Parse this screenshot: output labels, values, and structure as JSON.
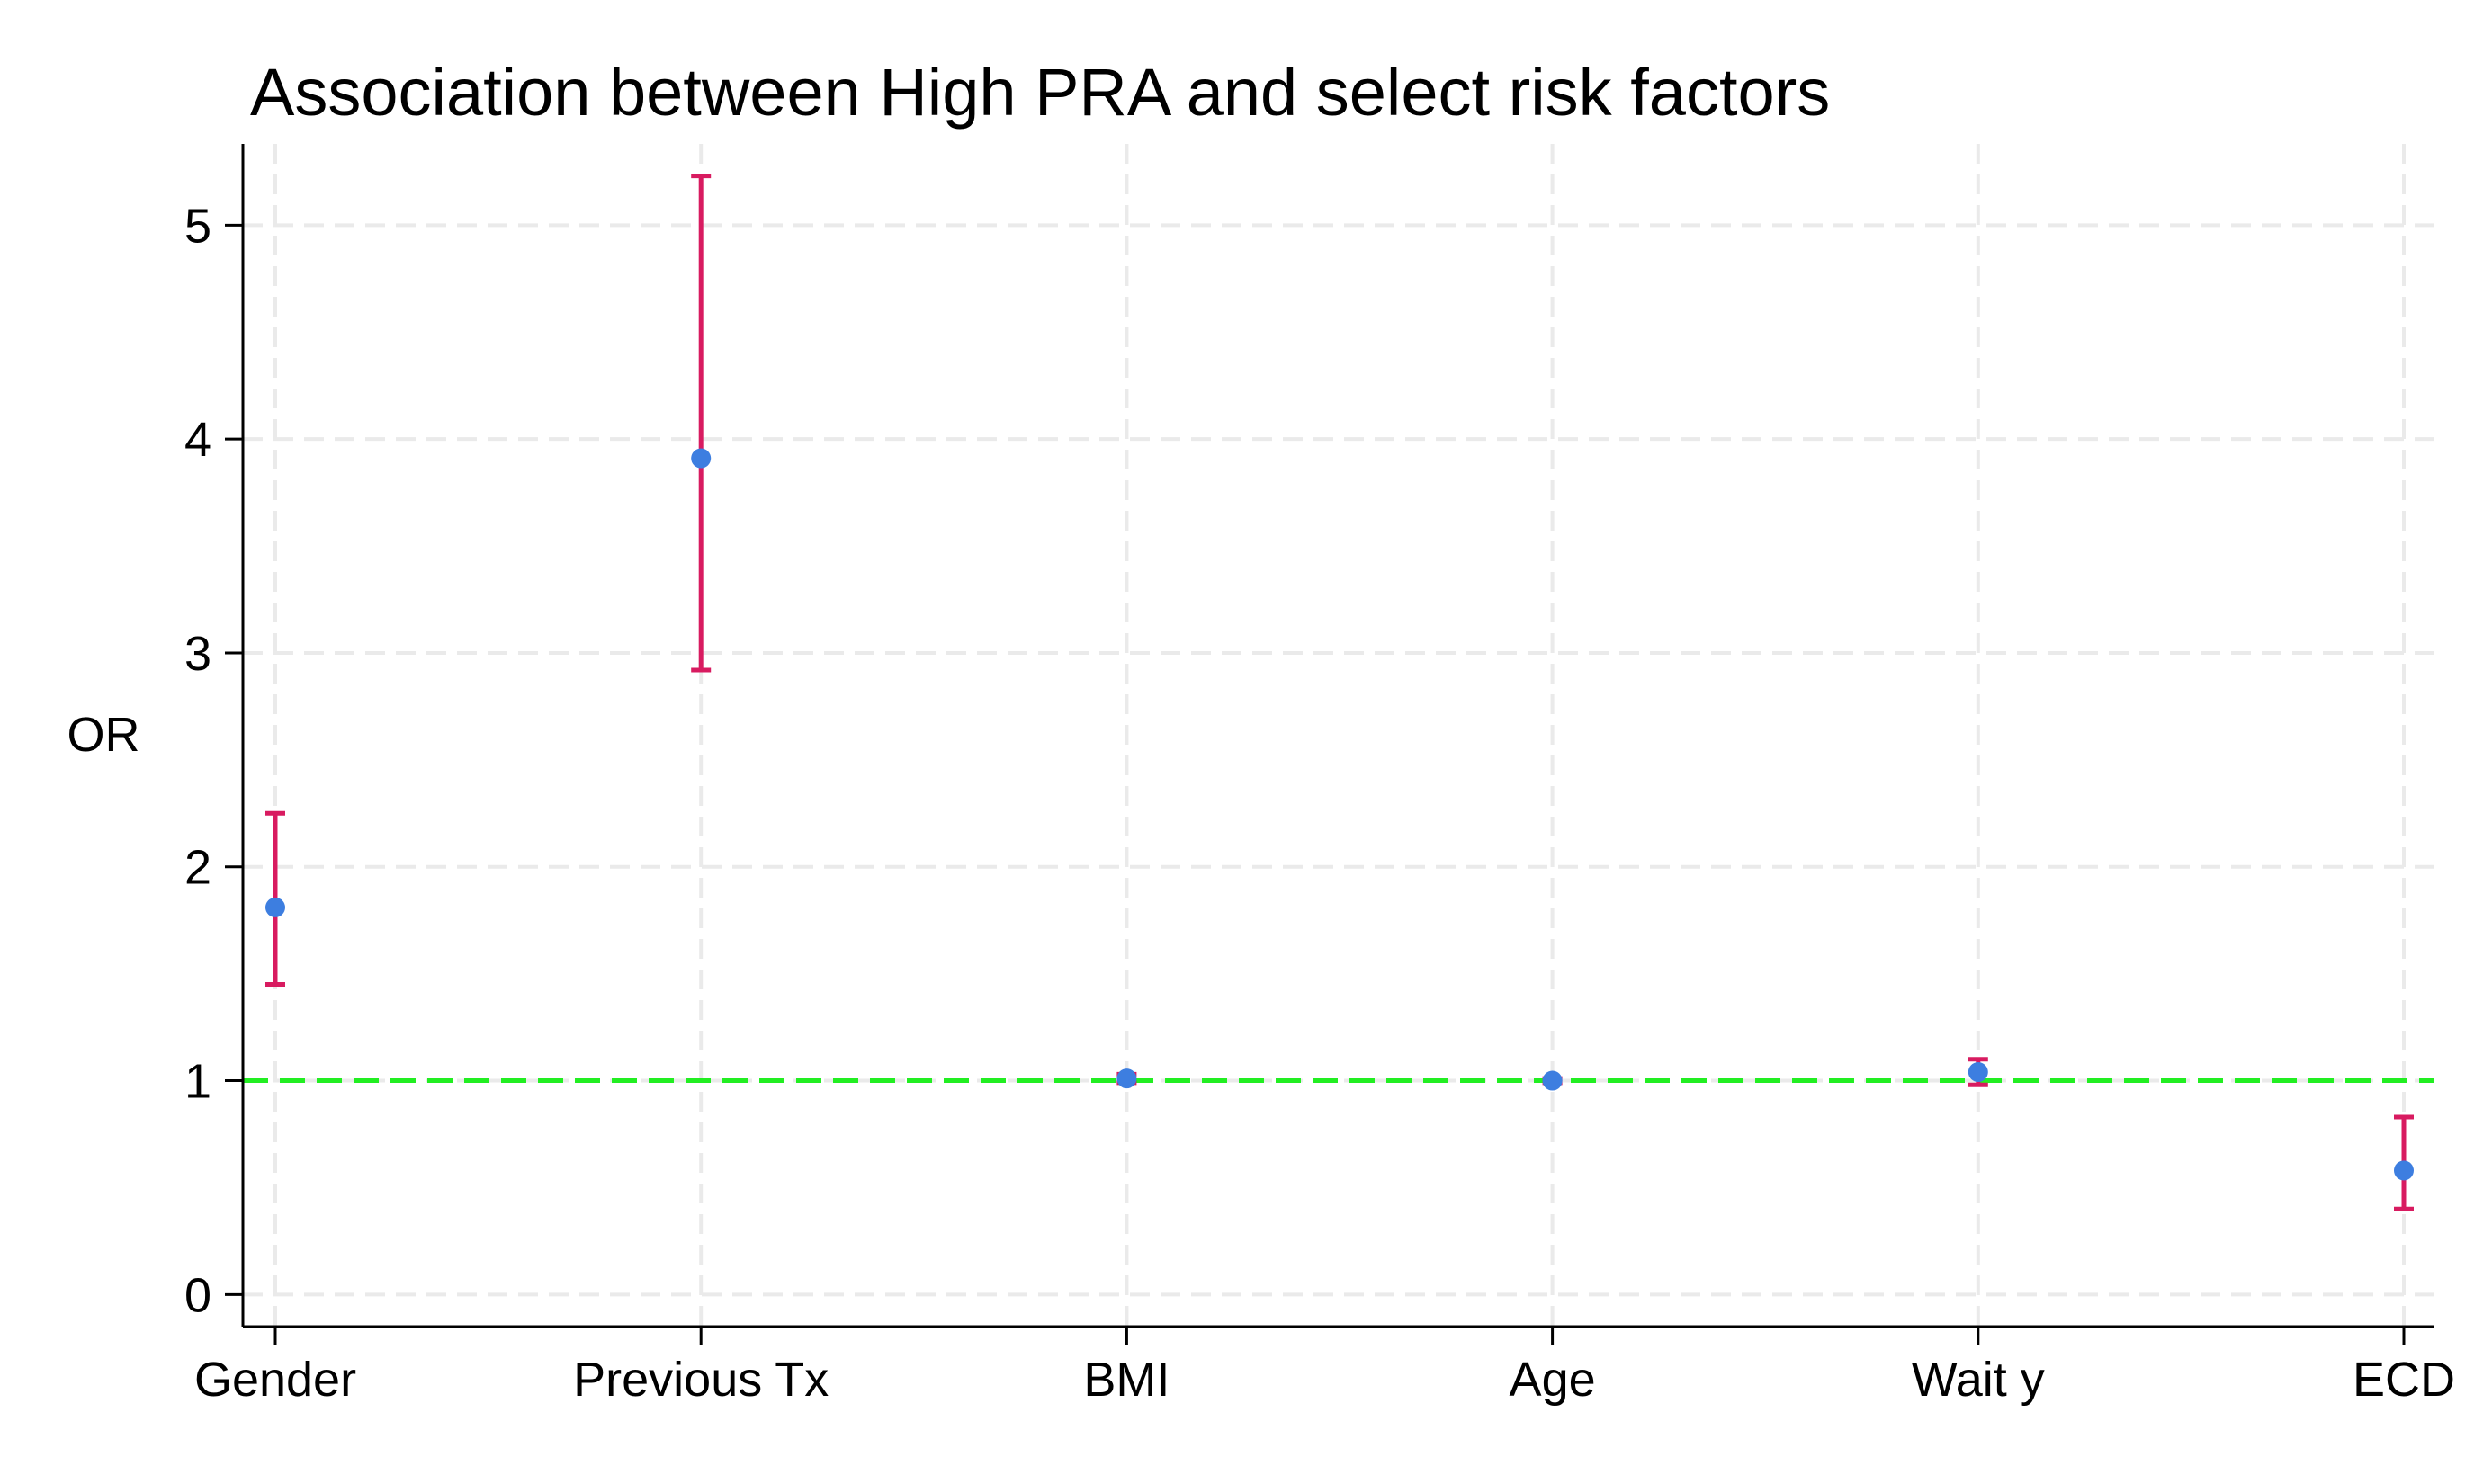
{
  "chart_data": {
    "type": "scatter",
    "title": "Association between High PRA and select risk factors",
    "xlabel": "",
    "ylabel": "OR",
    "categories": [
      "Gender",
      "Previous Tx",
      "BMI",
      "Age",
      "Wait y",
      "ECD"
    ],
    "series": [
      {
        "values": [
          1.81,
          3.91,
          1.01,
          1.0,
          1.04,
          0.58
        ],
        "ci_lower": [
          1.45,
          2.92,
          0.99,
          0.99,
          0.98,
          0.4
        ],
        "ci_upper": [
          2.25,
          5.23,
          1.03,
          1.01,
          1.1,
          0.83
        ]
      }
    ],
    "yticks": [
      0,
      1,
      2,
      3,
      4,
      5
    ],
    "ylim": [
      -0.15,
      5.38
    ],
    "reference_line": {
      "y": 1
    },
    "grid": true,
    "colors": {
      "point": "#3d7ee0",
      "ci": "#d81b60",
      "reference": "#22ee22",
      "grid": "#eaeaea",
      "axis": "#000000"
    }
  }
}
